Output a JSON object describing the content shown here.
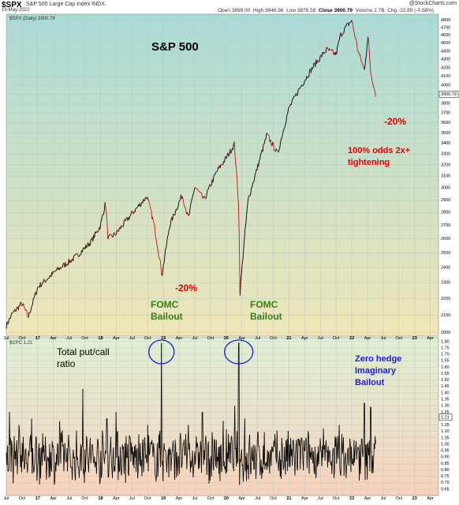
{
  "header": {
    "symbol": "$SPX",
    "description": "S&P 500 Large Cap Index  INDX",
    "date": "19-May-2022",
    "watermark": "@StockCharts.com",
    "ohlc_line": {
      "open_label": "Open",
      "open": "3899.00",
      "high_label": "High",
      "high": "3946.96",
      "low_label": "Low",
      "low": "3876.58",
      "close_label": "Close",
      "close": "3900.79",
      "volume_label": "Volume",
      "volume": "2.7B",
      "chg_label": "Chg",
      "chg": "-22.89 (-0.58%)"
    }
  },
  "colors": {
    "grid": "#b9c9c4",
    "price_up": "#000000",
    "price_down": "#d01010",
    "annotation_red": "#e00000",
    "annotation_green": "#3a7d1a",
    "annotation_blue": "#1a1ad8",
    "top_gradient_top": "#a9dbd7",
    "top_gradient_bottom": "#f0e6b7",
    "bottom_gradient_top": "#dff0d4",
    "bottom_gradient_bottom": "#f6d2bd"
  },
  "chart_data": [
    {
      "type": "line",
      "title": "S&P 500",
      "legend": "$SPX (Daily) 3900.79",
      "price_tag": "3900.79",
      "scale": "log",
      "x_ticks": [
        "Jul",
        "Oct",
        "17",
        "Apr",
        "Jul",
        "Oct",
        "18",
        "Apr",
        "Jul",
        "Oct",
        "19",
        "Apr",
        "Jul",
        "Oct",
        "20",
        "Apr",
        "Jul",
        "Oct",
        "21",
        "Apr",
        "Jul",
        "Oct",
        "22",
        "Apr",
        "Jul",
        "Oct",
        "23",
        "Apr"
      ],
      "y_ticks": [
        "2000",
        "2100",
        "2200",
        "2300",
        "2400",
        "2500",
        "2600",
        "2700",
        "2800",
        "2900",
        "3000",
        "3100",
        "3200",
        "3300",
        "3400",
        "3500",
        "3600",
        "3700",
        "3800",
        "3900",
        "4000",
        "4100",
        "4200",
        "4300",
        "4400",
        "4500",
        "4600",
        "4700",
        "4800"
      ],
      "ylim": [
        1980,
        4880
      ],
      "x": [
        2016.5,
        2016.6,
        2016.75,
        2016.85,
        2017.0,
        2017.3,
        2017.6,
        2017.85,
        2018.0,
        2018.08,
        2018.12,
        2018.25,
        2018.5,
        2018.74,
        2018.85,
        2018.98,
        2019.1,
        2019.3,
        2019.4,
        2019.5,
        2019.65,
        2019.85,
        2020.0,
        2020.13,
        2020.2,
        2020.22,
        2020.35,
        2020.5,
        2020.65,
        2020.82,
        2021.0,
        2021.2,
        2021.4,
        2021.6,
        2021.75,
        2021.82,
        2021.9,
        2022.0,
        2022.1,
        2022.2,
        2022.26,
        2022.3,
        2022.38
      ],
      "y": [
        2040,
        2110,
        2170,
        2090,
        2270,
        2380,
        2470,
        2580,
        2700,
        2880,
        2600,
        2640,
        2790,
        2930,
        2710,
        2350,
        2700,
        2940,
        2750,
        3010,
        2900,
        3140,
        3260,
        3390,
        2850,
        2237,
        2900,
        3180,
        3480,
        3300,
        3750,
        4000,
        4230,
        4420,
        4360,
        4600,
        4700,
        4796,
        4400,
        4170,
        4600,
        4150,
        3900
      ],
      "annotations": {
        "drop_2018": "-20%",
        "bailout_2018": "FOMC\nBailout",
        "bailout_2020": "FOMC\nBailout",
        "drop_2022": "-20%",
        "tightening": "100% odds 2x+\ntightening"
      }
    },
    {
      "type": "line",
      "title": "Total put/call ratio",
      "legend": "$CPC 1.21",
      "price_tag": "1.21",
      "y_ticks": [
        "0.65",
        "0.70",
        "0.75",
        "0.80",
        "0.85",
        "0.90",
        "0.95",
        "1.00",
        "1.05",
        "1.10",
        "1.15",
        "1.20",
        "1.25",
        "1.30",
        "1.35",
        "1.40",
        "1.45",
        "1.50",
        "1.55",
        "1.60",
        "1.65",
        "1.70",
        "1.75",
        "1.80"
      ],
      "ylim": [
        0.6,
        1.83
      ],
      "baseline": 0.9,
      "spikes": [
        {
          "x": 2016.55,
          "y": 1.25
        },
        {
          "x": 2016.7,
          "y": 1.15
        },
        {
          "x": 2016.9,
          "y": 1.2
        },
        {
          "x": 2017.35,
          "y": 1.18
        },
        {
          "x": 2017.72,
          "y": 1.43
        },
        {
          "x": 2018.1,
          "y": 1.2
        },
        {
          "x": 2018.25,
          "y": 1.25
        },
        {
          "x": 2018.75,
          "y": 1.15
        },
        {
          "x": 2018.97,
          "y": 1.79
        },
        {
          "x": 2019.4,
          "y": 1.15
        },
        {
          "x": 2019.62,
          "y": 1.25
        },
        {
          "x": 2019.95,
          "y": 1.18
        },
        {
          "x": 2020.14,
          "y": 1.3
        },
        {
          "x": 2020.2,
          "y": 1.79
        },
        {
          "x": 2020.3,
          "y": 1.2
        },
        {
          "x": 2021.2,
          "y": 1.05
        },
        {
          "x": 2021.8,
          "y": 1.15
        },
        {
          "x": 2022.2,
          "y": 1.32
        },
        {
          "x": 2022.3,
          "y": 1.29
        }
      ],
      "annotations": {
        "title": "Total put/call\nratio",
        "zero_hedge": "Zero hedge\nImaginary\nBailout"
      }
    }
  ]
}
